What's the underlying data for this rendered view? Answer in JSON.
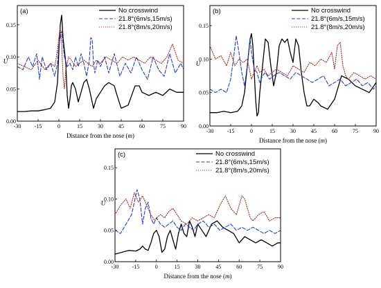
{
  "chart_data": [
    {
      "type": "line",
      "panel_label": "(a)",
      "xlabel_text": "Distance from the nose",
      "xlabel_unit": "m",
      "ylabel": "U",
      "xlim": [
        -30,
        90
      ],
      "ylim": [
        0.0,
        0.18
      ],
      "x_ticks": [
        "-30",
        "-15",
        "0",
        "15",
        "30",
        "45",
        "60",
        "75",
        "90"
      ],
      "y_ticks": [
        "0.00",
        "0.05",
        "0.10",
        "0.15"
      ],
      "legend_position": "top-right",
      "series": [
        {
          "name": "No crosswind",
          "color": "#000000",
          "dash": "solid",
          "x": [
            -30,
            -25,
            -20,
            -15,
            -10,
            -6,
            -3,
            -1,
            0,
            1,
            2,
            3,
            5,
            6,
            7,
            8,
            9,
            10,
            12,
            14,
            16,
            18,
            20,
            22,
            24,
            25,
            27,
            30,
            33,
            36,
            40,
            42,
            45,
            50,
            55,
            58,
            60,
            65,
            70,
            75,
            80,
            85,
            90
          ],
          "y": [
            0.015,
            0.015,
            0.016,
            0.016,
            0.018,
            0.02,
            0.03,
            0.06,
            0.11,
            0.15,
            0.165,
            0.13,
            0.09,
            0.04,
            0.02,
            0.035,
            0.055,
            0.06,
            0.05,
            0.03,
            0.045,
            0.06,
            0.065,
            0.05,
            0.03,
            0.02,
            0.035,
            0.045,
            0.055,
            0.06,
            0.055,
            0.04,
            0.02,
            0.025,
            0.055,
            0.055,
            0.045,
            0.04,
            0.045,
            0.04,
            0.05,
            0.045,
            0.045
          ]
        },
        {
          "name": "21.8°(6m/s,15m/s)",
          "color": "#1f3fd6",
          "dash": "dashed",
          "x": [
            -30,
            -26,
            -22,
            -19,
            -16,
            -14,
            -12,
            -9,
            -6,
            -3,
            -1,
            0,
            2,
            4,
            6,
            8,
            10,
            12,
            14,
            16,
            18,
            20,
            22,
            23,
            24,
            25,
            26,
            28,
            30,
            33,
            36,
            40,
            44,
            48,
            52,
            56,
            60,
            64,
            68,
            72,
            76,
            80,
            84,
            88,
            90
          ],
          "y": [
            0.085,
            0.08,
            0.1,
            0.085,
            0.105,
            0.065,
            0.1,
            0.08,
            0.09,
            0.07,
            0.09,
            0.12,
            0.14,
            0.1,
            0.085,
            0.09,
            0.08,
            0.1,
            0.085,
            0.105,
            0.09,
            0.07,
            0.095,
            0.13,
            0.128,
            0.09,
            0.075,
            0.095,
            0.085,
            0.1,
            0.075,
            0.105,
            0.07,
            0.09,
            0.075,
            0.1,
            0.08,
            0.065,
            0.1,
            0.08,
            0.07,
            0.105,
            0.075,
            0.09,
            0.08
          ]
        },
        {
          "name": "21.8°(8m/s,20m/s)",
          "color": "#a0281e",
          "dash": "dotted",
          "x": [
            -30,
            -25,
            -20,
            -15,
            -10,
            -6,
            -3,
            -1,
            0,
            1,
            2,
            3,
            4,
            5,
            7,
            9,
            12,
            15,
            18,
            21,
            24,
            27,
            30,
            34,
            38,
            42,
            46,
            50,
            54,
            58,
            62,
            66,
            70,
            74,
            78,
            82,
            86,
            90
          ],
          "y": [
            0.09,
            0.085,
            0.08,
            0.095,
            0.08,
            0.09,
            0.085,
            0.11,
            0.13,
            0.145,
            0.12,
            0.07,
            0.05,
            0.08,
            0.1,
            0.095,
            0.085,
            0.09,
            0.095,
            0.09,
            0.085,
            0.095,
            0.09,
            0.1,
            0.095,
            0.09,
            0.1,
            0.095,
            0.1,
            0.095,
            0.09,
            0.1,
            0.095,
            0.09,
            0.1,
            0.12,
            0.095,
            0.09
          ]
        }
      ]
    },
    {
      "type": "line",
      "panel_label": "(b)",
      "xlabel_text": "Distance from the nose",
      "xlabel_unit": "m",
      "ylabel": "U",
      "xlim": [
        -30,
        90
      ],
      "ylim": [
        0.0,
        0.18
      ],
      "x_ticks": [
        "-30",
        "-15",
        "0",
        "15",
        "30",
        "45",
        "60",
        "75",
        "90"
      ],
      "y_ticks": [
        "0.00",
        "0.05",
        "0.10",
        "0.15"
      ],
      "legend_position": "top-right",
      "series": [
        {
          "name": "No crosswind",
          "color": "#000000",
          "dash": "solid",
          "x": [
            -30,
            -25,
            -20,
            -15,
            -10,
            -7,
            -5,
            -3,
            -1,
            0,
            1,
            2,
            3,
            4,
            5,
            6,
            8,
            10,
            12,
            14,
            16,
            18,
            20,
            22,
            24,
            26,
            28,
            30,
            32,
            34,
            36,
            38,
            40,
            42,
            45,
            48,
            50,
            55,
            60,
            65,
            70,
            75,
            80,
            85,
            90
          ],
          "y": [
            0.02,
            0.02,
            0.022,
            0.02,
            0.022,
            0.03,
            0.05,
            0.09,
            0.13,
            0.138,
            0.12,
            0.08,
            0.04,
            0.015,
            0.02,
            0.05,
            0.09,
            0.13,
            0.125,
            0.09,
            0.06,
            0.08,
            0.12,
            0.13,
            0.125,
            0.13,
            0.11,
            0.095,
            0.13,
            0.12,
            0.08,
            0.05,
            0.03,
            0.03,
            0.04,
            0.035,
            0.03,
            0.025,
            0.04,
            0.075,
            0.07,
            0.06,
            0.055,
            0.05,
            0.065
          ]
        },
        {
          "name": "21.8°(6m/s,15m/s)",
          "color": "#1f3fd6",
          "dash": "dashed",
          "x": [
            -30,
            -26,
            -22,
            -18,
            -15,
            -13,
            -11,
            -9,
            -7,
            -5,
            -3,
            -1,
            0,
            2,
            4,
            6,
            8,
            10,
            13,
            16,
            20,
            24,
            28,
            32,
            36,
            40,
            44,
            48,
            52,
            56,
            60,
            64,
            68,
            72,
            76,
            80,
            84,
            88,
            90
          ],
          "y": [
            0.055,
            0.05,
            0.055,
            0.05,
            0.07,
            0.1,
            0.135,
            0.11,
            0.08,
            0.06,
            0.09,
            0.13,
            0.11,
            0.085,
            0.08,
            0.065,
            0.075,
            0.08,
            0.07,
            0.075,
            0.08,
            0.075,
            0.07,
            0.08,
            0.075,
            0.07,
            0.065,
            0.07,
            0.075,
            0.06,
            0.065,
            0.07,
            0.06,
            0.065,
            0.07,
            0.06,
            0.065,
            0.055,
            0.06
          ]
        },
        {
          "name": "21.8°(8m/s,20m/s)",
          "color": "#a0281e",
          "dash": "dotted",
          "x": [
            -30,
            -26,
            -22,
            -18,
            -15,
            -12,
            -9,
            -6,
            -3,
            -1,
            0,
            2,
            4,
            6,
            9,
            12,
            15,
            18,
            22,
            26,
            30,
            34,
            38,
            42,
            46,
            50,
            54,
            58,
            60,
            62,
            64,
            66,
            68,
            70,
            74,
            78,
            82,
            86,
            90
          ],
          "y": [
            0.12,
            0.1,
            0.105,
            0.09,
            0.11,
            0.09,
            0.1,
            0.095,
            0.1,
            0.08,
            0.07,
            0.08,
            0.09,
            0.08,
            0.085,
            0.075,
            0.08,
            0.085,
            0.08,
            0.075,
            0.09,
            0.085,
            0.08,
            0.095,
            0.09,
            0.1,
            0.095,
            0.11,
            0.085,
            0.12,
            0.125,
            0.09,
            0.075,
            0.07,
            0.08,
            0.075,
            0.07,
            0.075,
            0.07
          ]
        }
      ]
    },
    {
      "type": "line",
      "panel_label": "(c)",
      "xlabel_text": "Distance from the nose",
      "xlabel_unit": "m",
      "ylabel": "U",
      "xlim": [
        -30,
        90
      ],
      "ylim": [
        0.0,
        0.18
      ],
      "x_ticks": [
        "-30",
        "-15",
        "0",
        "15",
        "30",
        "45",
        "60",
        "75",
        "90"
      ],
      "y_ticks": [
        "0.00",
        "0.05",
        "0.10",
        "0.15"
      ],
      "legend_position": "top-right",
      "series": [
        {
          "name": "No crosswind",
          "color": "#000000",
          "dash": "solid",
          "x": [
            -30,
            -25,
            -20,
            -15,
            -12,
            -10,
            -8,
            -6,
            -4,
            -2,
            0,
            2,
            4,
            6,
            8,
            10,
            12,
            14,
            16,
            18,
            20,
            22,
            24,
            26,
            28,
            30,
            33,
            36,
            40,
            44,
            48,
            52,
            56,
            60,
            64,
            68,
            72,
            76,
            80,
            84,
            88,
            90
          ],
          "y": [
            0.012,
            0.015,
            0.018,
            0.017,
            0.02,
            0.025,
            0.02,
            0.018,
            0.03,
            0.045,
            0.05,
            0.04,
            0.015,
            0.02,
            0.04,
            0.05,
            0.035,
            0.02,
            0.045,
            0.06,
            0.045,
            0.04,
            0.065,
            0.055,
            0.04,
            0.06,
            0.05,
            0.04,
            0.06,
            0.065,
            0.055,
            0.05,
            0.045,
            0.03,
            0.04,
            0.035,
            0.03,
            0.035,
            0.03,
            0.025,
            0.03,
            0.03
          ]
        },
        {
          "name": "21.8°(6m/s,15m/s)",
          "color": "#1f3fd6",
          "dash": "dashed",
          "x": [
            -30,
            -26,
            -22,
            -18,
            -16,
            -14,
            -12,
            -10,
            -8,
            -6,
            -4,
            -2,
            0,
            3,
            6,
            9,
            12,
            15,
            18,
            21,
            24,
            27,
            30,
            34,
            38,
            42,
            46,
            50,
            54,
            58,
            62,
            66,
            70,
            74,
            78,
            82,
            86,
            90
          ],
          "y": [
            0.05,
            0.045,
            0.06,
            0.075,
            0.095,
            0.115,
            0.1,
            0.06,
            0.085,
            0.095,
            0.07,
            0.06,
            0.07,
            0.06,
            0.055,
            0.06,
            0.065,
            0.055,
            0.05,
            0.06,
            0.055,
            0.05,
            0.06,
            0.065,
            0.055,
            0.06,
            0.05,
            0.055,
            0.06,
            0.05,
            0.055,
            0.05,
            0.055,
            0.05,
            0.045,
            0.05,
            0.045,
            0.05
          ]
        },
        {
          "name": "21.8°(8m/s,20m/s)",
          "color": "#a0281e",
          "dash": "dotted",
          "x": [
            -30,
            -26,
            -22,
            -19,
            -16,
            -13,
            -10,
            -7,
            -4,
            -1,
            0,
            3,
            6,
            9,
            12,
            15,
            18,
            22,
            26,
            30,
            34,
            38,
            42,
            46,
            50,
            54,
            58,
            60,
            62,
            64,
            66,
            68,
            70,
            74,
            78,
            82,
            86,
            90
          ],
          "y": [
            0.075,
            0.09,
            0.1,
            0.085,
            0.11,
            0.095,
            0.105,
            0.09,
            0.075,
            0.065,
            0.07,
            0.075,
            0.07,
            0.08,
            0.085,
            0.075,
            0.065,
            0.06,
            0.07,
            0.065,
            0.07,
            0.075,
            0.07,
            0.09,
            0.105,
            0.085,
            0.075,
            0.09,
            0.105,
            0.1,
            0.085,
            0.07,
            0.065,
            0.075,
            0.08,
            0.065,
            0.07,
            0.07
          ]
        }
      ]
    }
  ]
}
